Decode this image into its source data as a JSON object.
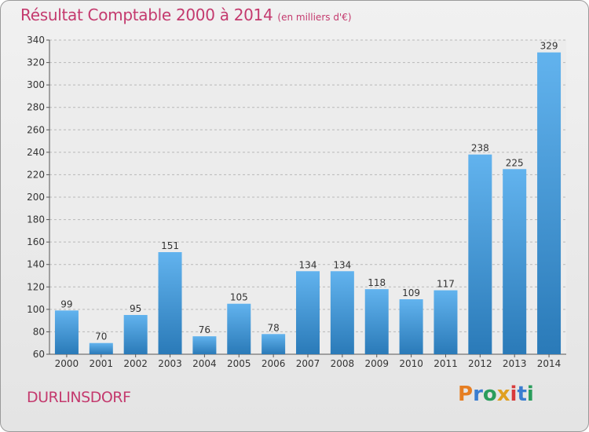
{
  "header": {
    "title": "Résultat Comptable 2000 à 2014",
    "subtitle": "(en milliers d'€)"
  },
  "footer": {
    "place": "DURLINSDORF",
    "logo": "Proxiti"
  },
  "colors": {
    "accent": "#c43a6e",
    "bar_light": "#62b3ee",
    "bar_dark": "#2a7ab8",
    "logo_letters": [
      "#e67e22",
      "#3a7dd0",
      "#2a9d5c",
      "#e0a020",
      "#d83a3a",
      "#3a7dd0",
      "#2a9d5c"
    ]
  },
  "chart_data": {
    "type": "bar",
    "title": "Résultat Comptable 2000 à 2014",
    "subtitle": "(en milliers d'€)",
    "categories": [
      "2000",
      "2001",
      "2002",
      "2003",
      "2004",
      "2005",
      "2006",
      "2007",
      "2008",
      "2009",
      "2010",
      "2011",
      "2012",
      "2013",
      "2014"
    ],
    "values": [
      99,
      70,
      95,
      151,
      76,
      105,
      78,
      134,
      134,
      118,
      109,
      117,
      238,
      225,
      329
    ],
    "ylim": [
      60,
      340
    ],
    "yticks": [
      60,
      80,
      100,
      120,
      140,
      160,
      180,
      200,
      220,
      240,
      260,
      280,
      300,
      320,
      340
    ],
    "grid": "horizontal-dashed",
    "xlabel": "",
    "ylabel": ""
  }
}
